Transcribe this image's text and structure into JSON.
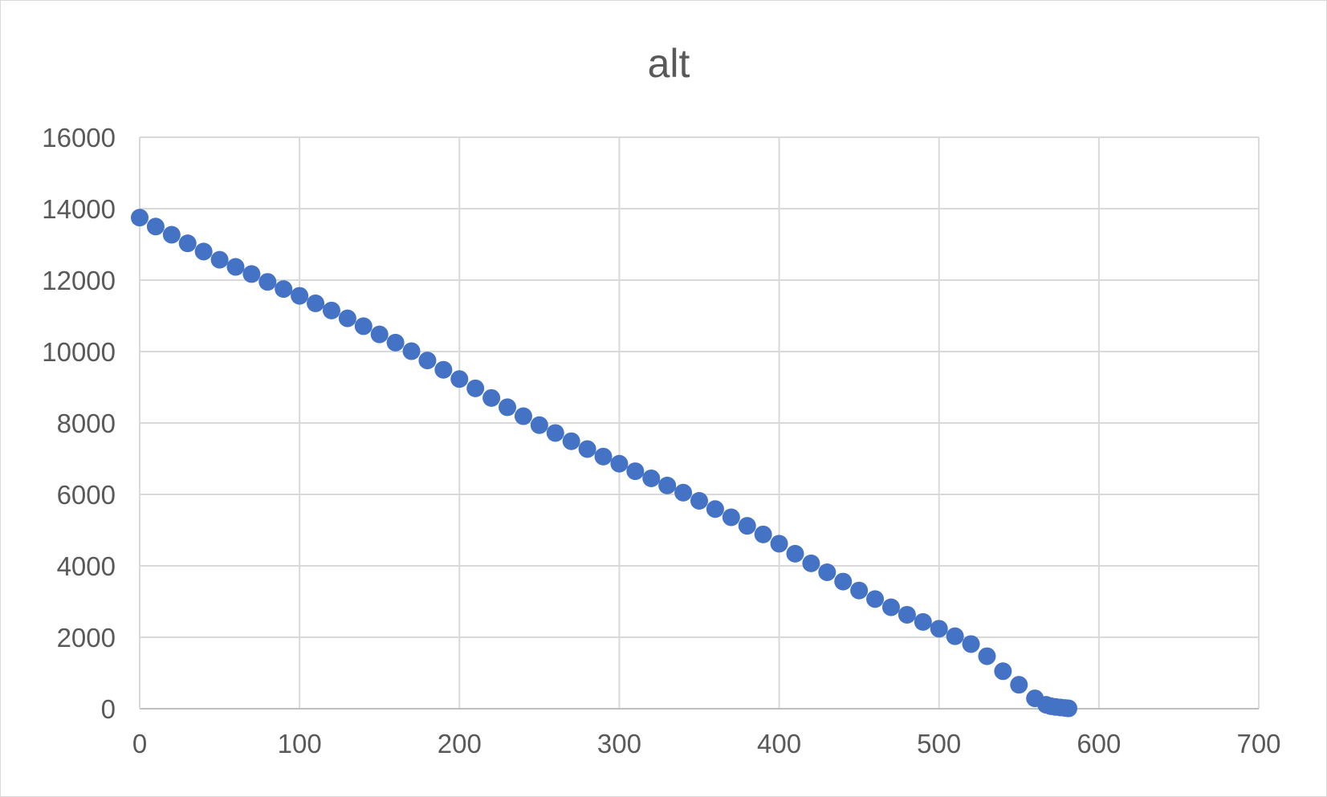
{
  "chart_data": {
    "type": "scatter",
    "title": "alt",
    "xlabel": "",
    "ylabel": "",
    "xlim": [
      0,
      700
    ],
    "ylim": [
      0,
      16000
    ],
    "x_ticks": [
      "0",
      "100",
      "200",
      "300",
      "400",
      "500",
      "600",
      "700"
    ],
    "y_ticks": [
      "0",
      "2000",
      "4000",
      "6000",
      "8000",
      "10000",
      "12000",
      "14000",
      "16000"
    ],
    "grid": true,
    "legend": "none",
    "marker_color": "#4472c4",
    "points": [
      [
        0,
        13750
      ],
      [
        10,
        13500
      ],
      [
        20,
        13270
      ],
      [
        30,
        13030
      ],
      [
        40,
        12800
      ],
      [
        50,
        12570
      ],
      [
        60,
        12370
      ],
      [
        70,
        12170
      ],
      [
        80,
        11950
      ],
      [
        90,
        11750
      ],
      [
        100,
        11560
      ],
      [
        110,
        11350
      ],
      [
        120,
        11150
      ],
      [
        130,
        10930
      ],
      [
        140,
        10710
      ],
      [
        150,
        10480
      ],
      [
        160,
        10250
      ],
      [
        170,
        10010
      ],
      [
        180,
        9750
      ],
      [
        190,
        9490
      ],
      [
        200,
        9230
      ],
      [
        210,
        8970
      ],
      [
        220,
        8700
      ],
      [
        230,
        8440
      ],
      [
        240,
        8190
      ],
      [
        250,
        7940
      ],
      [
        260,
        7720
      ],
      [
        270,
        7490
      ],
      [
        280,
        7270
      ],
      [
        290,
        7060
      ],
      [
        300,
        6860
      ],
      [
        310,
        6650
      ],
      [
        320,
        6450
      ],
      [
        330,
        6250
      ],
      [
        340,
        6050
      ],
      [
        350,
        5820
      ],
      [
        360,
        5590
      ],
      [
        370,
        5360
      ],
      [
        380,
        5120
      ],
      [
        390,
        4880
      ],
      [
        400,
        4620
      ],
      [
        410,
        4340
      ],
      [
        420,
        4070
      ],
      [
        430,
        3820
      ],
      [
        440,
        3560
      ],
      [
        450,
        3310
      ],
      [
        460,
        3070
      ],
      [
        470,
        2840
      ],
      [
        480,
        2630
      ],
      [
        490,
        2430
      ],
      [
        500,
        2240
      ],
      [
        510,
        2030
      ],
      [
        520,
        1810
      ],
      [
        530,
        1470
      ],
      [
        540,
        1050
      ],
      [
        550,
        670
      ],
      [
        560,
        290
      ],
      [
        567,
        110
      ],
      [
        570,
        70
      ],
      [
        573,
        50
      ],
      [
        576,
        35
      ],
      [
        579,
        20
      ],
      [
        581,
        10
      ]
    ]
  }
}
